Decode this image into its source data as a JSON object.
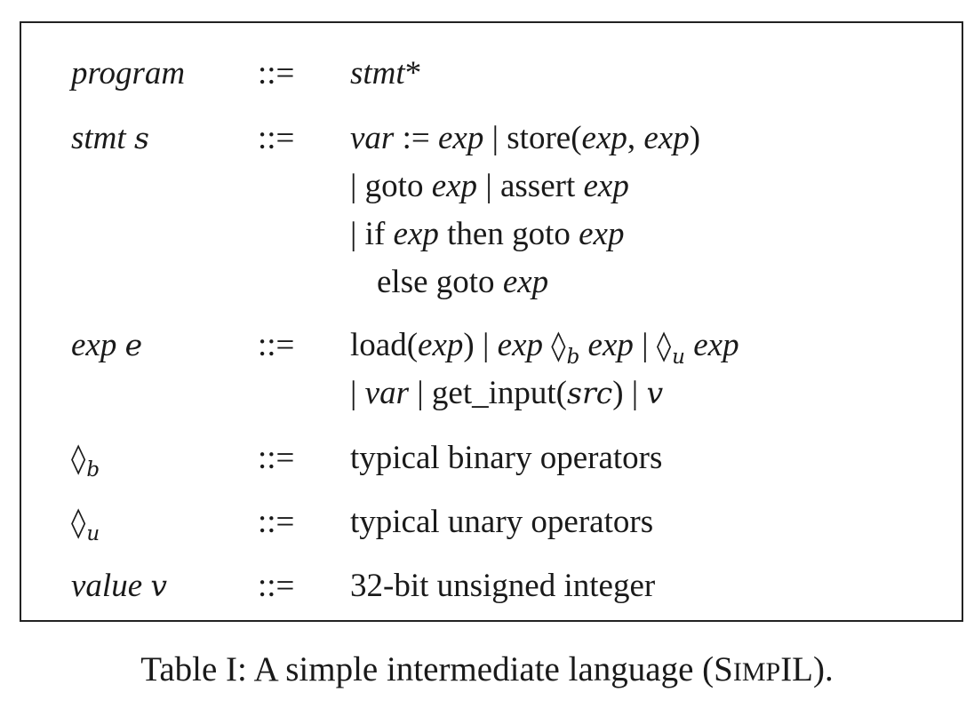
{
  "grammar": {
    "def_symbol": "::=",
    "program": {
      "nt": "program",
      "star": "*",
      "rhs_nt": "stmt"
    },
    "stmt": {
      "nt": "stmt",
      "meta": "s",
      "l1": {
        "var": "var",
        "assign": " := ",
        "exp1": "exp",
        "sep": " | ",
        "store": "store(",
        "exp2": "exp",
        "comma": ", ",
        "exp3": "exp",
        "close": ")"
      },
      "l2": {
        "bar1": "| ",
        "goto": "goto ",
        "exp1": "exp",
        "bar2": " | ",
        "assert": "assert ",
        "exp2": "exp"
      },
      "l3": {
        "bar": "| ",
        "if": "if ",
        "exp1": "exp",
        "then": " then goto ",
        "exp2": "exp"
      },
      "l4": {
        "else": "else goto ",
        "exp": "exp"
      }
    },
    "exp": {
      "nt": "exp",
      "meta": "e",
      "l1": {
        "load": "load(",
        "exp1": "exp",
        "close": ")",
        "bar1": " | ",
        "exp2": "exp",
        "dia": "◊",
        "b": "b",
        "exp3": "exp",
        "bar2": " | ",
        "dia2": "◊",
        "u": "u",
        "exp4": "exp"
      },
      "l2": {
        "bar1": "| ",
        "var": "var",
        "bar2": " | ",
        "get": "get_input(",
        "src": "src",
        "close": ")",
        "bar3": " | ",
        "v": "v"
      }
    },
    "binop": {
      "dia": "◊",
      "sub": "b",
      "desc": "typical binary operators"
    },
    "unop": {
      "dia": "◊",
      "sub": "u",
      "desc": "typical unary operators"
    },
    "value": {
      "nt": "value",
      "meta": "v",
      "desc": "32-bit unsigned integer"
    }
  },
  "caption": {
    "prefix": "Table I: A simple intermediate language (",
    "s": "S",
    "imp": "IMP",
    "il": "IL",
    "suffix": ")."
  }
}
